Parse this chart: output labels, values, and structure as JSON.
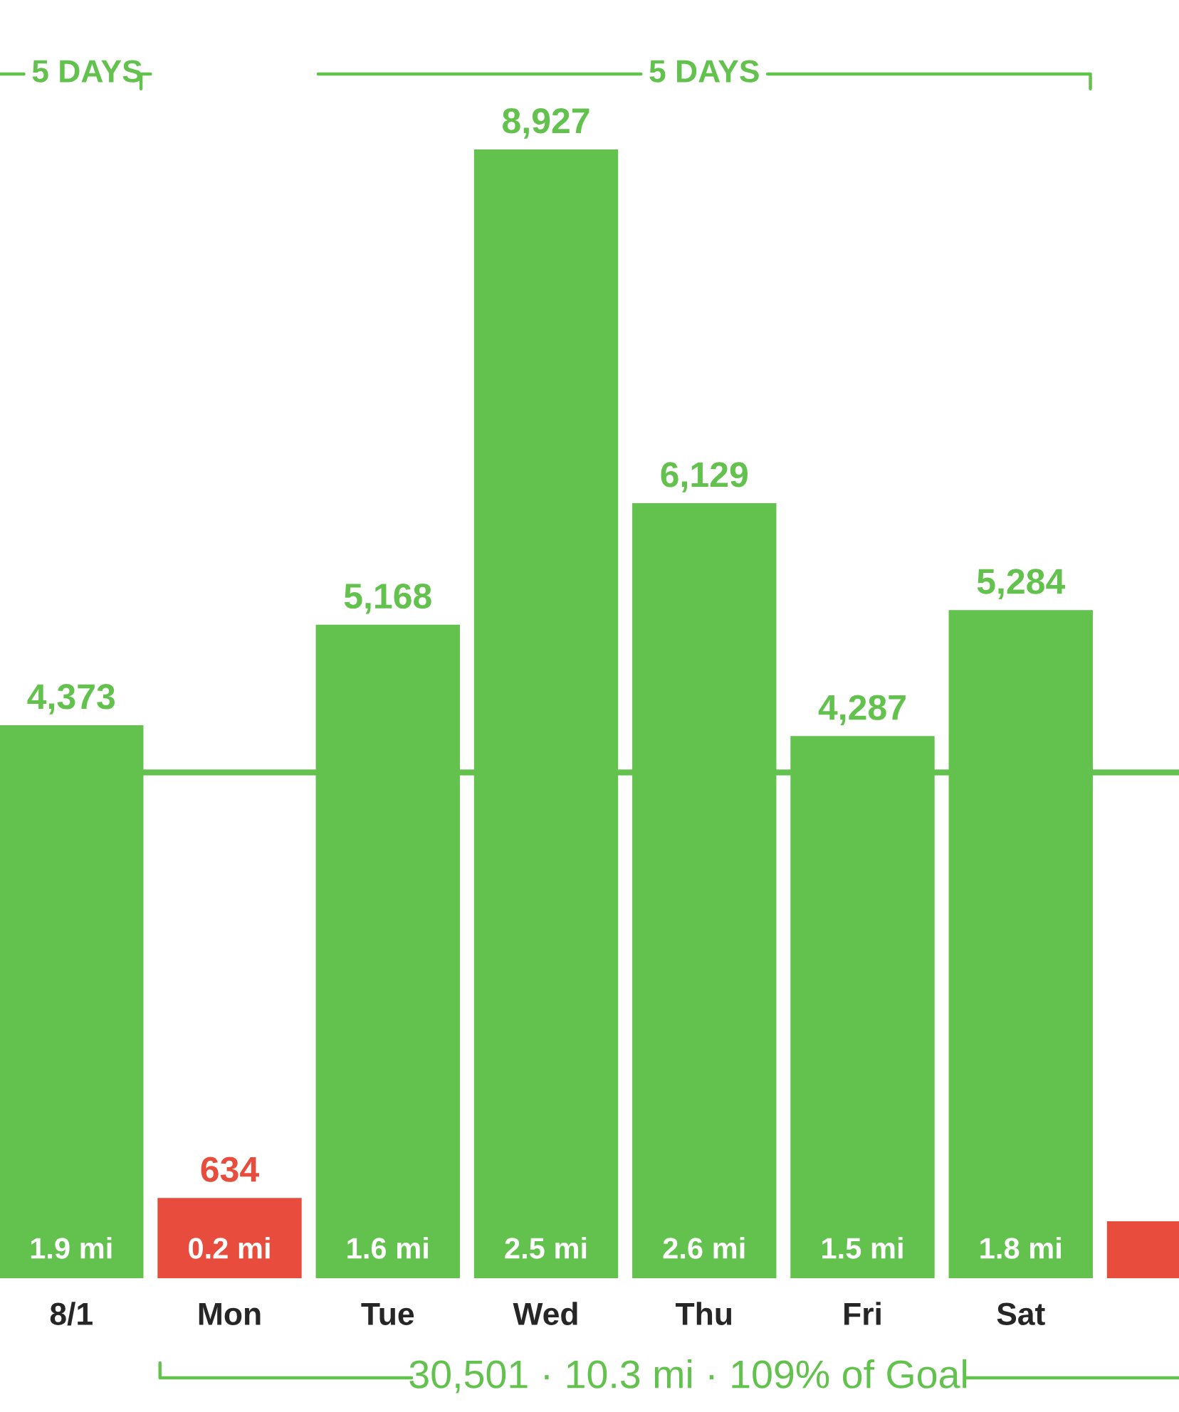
{
  "chart_data": {
    "type": "bar",
    "categories": [
      "8/1",
      "Mon",
      "Tue",
      "Wed",
      "Thu",
      "Fri",
      "Sat",
      null
    ],
    "values": [
      4373,
      634,
      5168,
      8927,
      6129,
      4287,
      5284,
      450
    ],
    "colors": [
      "#62c24d",
      "#e74c3c",
      "#62c24d",
      "#62c24d",
      "#62c24d",
      "#62c24d",
      "#62c24d",
      "#e74c3c"
    ],
    "value_labels": [
      "4,373",
      "634",
      "5,168",
      "8,927",
      "6,129",
      "4,287",
      "5,284",
      null
    ],
    "ref_lines": [
      {
        "axis": "y",
        "value": 4000,
        "color": "#62c24d"
      }
    ],
    "annotations": [
      {
        "text": "1.9 mi",
        "x": "8/1",
        "y": 0
      },
      {
        "text": "0.2 mi",
        "x": "Mon",
        "y": 0
      },
      {
        "text": "1.6 mi",
        "x": "Tue",
        "y": 0
      },
      {
        "text": "2.5 mi",
        "x": "Wed",
        "y": 0
      },
      {
        "text": "2.6 mi",
        "x": "Thu",
        "y": 0
      },
      {
        "text": "1.5 mi",
        "x": "Fri",
        "y": 0
      },
      {
        "text": "1.8 mi",
        "x": "Sat",
        "y": 0
      },
      "5 DAYS",
      "5 DAYS",
      "30,501 · 10.3 mi · 109% of Goal"
    ],
    "grid": false
  }
}
